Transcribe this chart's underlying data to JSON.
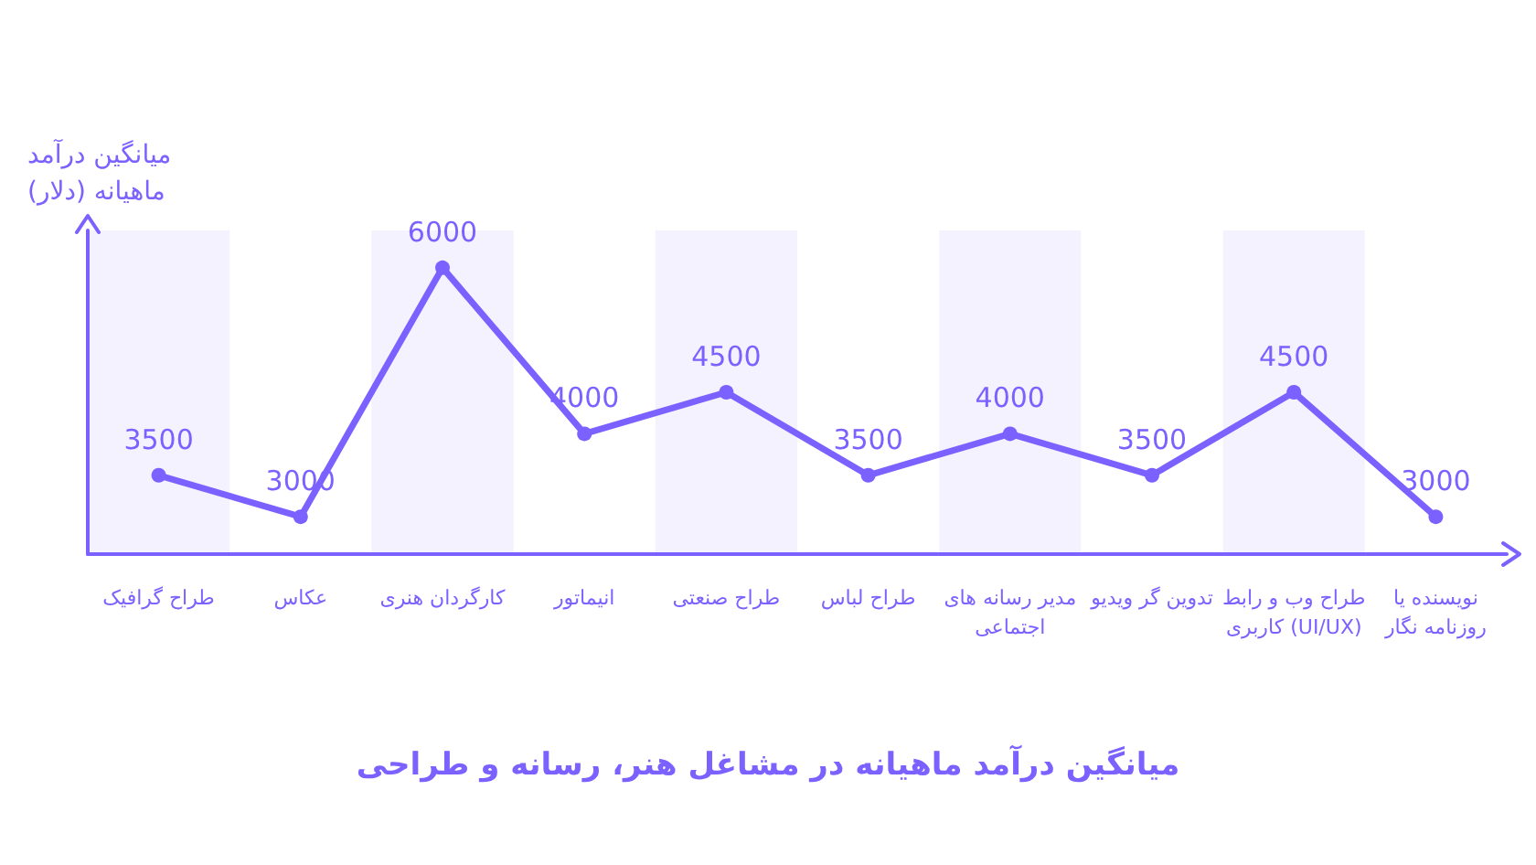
{
  "chart_data": {
    "type": "line",
    "title": "میانگین درآمد ماهیانه در مشاغل هنر، رسانه و طراحی",
    "ylabel": "میانگین درآمد ماهیانه (دلار)",
    "categories": [
      "طراح گرافیک",
      "عکاس",
      "کارگردان هنری",
      "انیماتور",
      "طراح صنعتی",
      "طراح لباس",
      "مدیر رسانه های اجتماعی",
      "تدوین گر ویدیو",
      "طراح وب و رابط کاربری (UI/UX)",
      "نویسنده یا روزنامه نگار"
    ],
    "series": [
      {
        "color": "#7b61ff",
        "values": [
          3500,
          3000,
          6000,
          4000,
          4500,
          3500,
          4000,
          3500,
          4500,
          3000
        ]
      }
    ],
    "bands": [
      {
        "axis": "x",
        "from": "طراح گرافیک",
        "to": "طراح گرافیک",
        "color": "#f4f2ff"
      },
      {
        "axis": "x",
        "from": "کارگردان هنری",
        "to": "کارگردان هنری",
        "color": "#f4f2ff"
      },
      {
        "axis": "x",
        "from": "طراح صنعتی",
        "to": "طراح صنعتی",
        "color": "#f4f2ff"
      },
      {
        "axis": "x",
        "from": "مدیر رسانه های اجتماعی",
        "to": "مدیر رسانه های اجتماعی",
        "color": "#f4f2ff"
      },
      {
        "axis": "x",
        "from": "طراح وب و رابط کاربری (UI/UX)",
        "to": "طراح وب و رابط کاربری (UI/UX)",
        "color": "#f4f2ff"
      }
    ],
    "data_labels": true,
    "marker": "circle",
    "grid": false
  }
}
